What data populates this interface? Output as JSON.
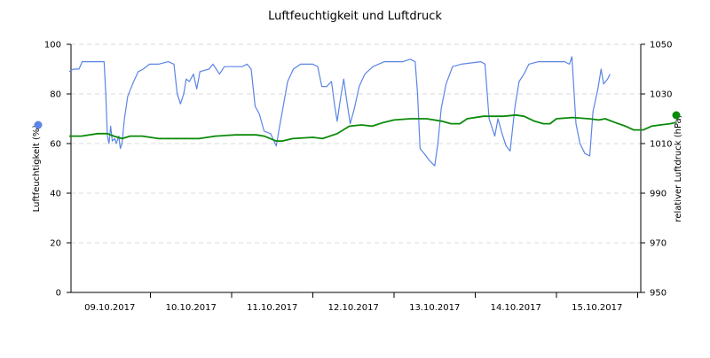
{
  "chart_data": {
    "type": "line",
    "title": "Luftfeuchtigkeit und Luftdruck",
    "y_left": {
      "label": "Luftfeuchtigkeit (%)",
      "min": 0,
      "max": 100,
      "ticks": [
        0,
        20,
        40,
        60,
        80,
        100
      ]
    },
    "y_right": {
      "label": "relativer Luftdruck (hPa)",
      "min": 950,
      "max": 1050,
      "ticks": [
        950,
        970,
        990,
        1010,
        1030,
        1050
      ]
    },
    "x": {
      "min_day": 0,
      "max_day": 7.0,
      "tick_labels": [
        "09.10.2017",
        "10.10.2017",
        "11.10.2017",
        "12.10.2017",
        "13.10.2017",
        "14.10.2017",
        "15.10.2017"
      ]
    },
    "grid": true,
    "legend": "axis-dots",
    "series": [
      {
        "name": "Luftfeuchtigkeit",
        "axis": "left",
        "color": "#5b85e6",
        "points": [
          [
            0.0,
            89
          ],
          [
            0.05,
            90
          ],
          [
            0.12,
            90
          ],
          [
            0.16,
            93
          ],
          [
            0.3,
            93
          ],
          [
            0.43,
            93
          ],
          [
            0.45,
            80
          ],
          [
            0.47,
            63
          ],
          [
            0.49,
            60
          ],
          [
            0.51,
            67
          ],
          [
            0.53,
            61
          ],
          [
            0.56,
            62
          ],
          [
            0.58,
            60
          ],
          [
            0.61,
            63
          ],
          [
            0.63,
            58
          ],
          [
            0.65,
            60
          ],
          [
            0.68,
            70
          ],
          [
            0.72,
            79
          ],
          [
            0.78,
            84
          ],
          [
            0.85,
            89
          ],
          [
            0.91,
            90
          ],
          [
            0.99,
            92
          ],
          [
            1.1,
            92
          ],
          [
            1.22,
            93
          ],
          [
            1.29,
            92
          ],
          [
            1.33,
            80
          ],
          [
            1.37,
            76
          ],
          [
            1.41,
            80
          ],
          [
            1.44,
            86
          ],
          [
            1.48,
            85
          ],
          [
            1.53,
            88
          ],
          [
            1.57,
            82
          ],
          [
            1.61,
            89
          ],
          [
            1.72,
            90
          ],
          [
            1.77,
            92
          ],
          [
            1.85,
            88
          ],
          [
            1.91,
            91
          ],
          [
            2.01,
            91
          ],
          [
            2.13,
            91
          ],
          [
            2.19,
            92
          ],
          [
            2.24,
            90
          ],
          [
            2.29,
            75
          ],
          [
            2.34,
            72
          ],
          [
            2.4,
            65
          ],
          [
            2.48,
            64
          ],
          [
            2.55,
            59
          ],
          [
            2.58,
            65
          ],
          [
            2.63,
            74
          ],
          [
            2.69,
            85
          ],
          [
            2.76,
            90
          ],
          [
            2.85,
            92
          ],
          [
            3.0,
            92
          ],
          [
            3.06,
            91
          ],
          [
            3.11,
            83
          ],
          [
            3.17,
            83
          ],
          [
            3.23,
            85
          ],
          [
            3.27,
            75
          ],
          [
            3.3,
            69
          ],
          [
            3.34,
            78
          ],
          [
            3.38,
            86
          ],
          [
            3.41,
            79
          ],
          [
            3.46,
            68
          ],
          [
            3.51,
            74
          ],
          [
            3.57,
            83
          ],
          [
            3.64,
            88
          ],
          [
            3.74,
            91
          ],
          [
            3.88,
            93
          ],
          [
            4.11,
            93
          ],
          [
            4.2,
            94
          ],
          [
            4.26,
            93
          ],
          [
            4.29,
            80
          ],
          [
            4.32,
            58
          ],
          [
            4.37,
            56
          ],
          [
            4.44,
            53
          ],
          [
            4.5,
            51
          ],
          [
            4.54,
            60
          ],
          [
            4.58,
            74
          ],
          [
            4.64,
            84
          ],
          [
            4.72,
            91
          ],
          [
            4.83,
            92
          ],
          [
            5.07,
            93
          ],
          [
            5.12,
            92
          ],
          [
            5.17,
            70
          ],
          [
            5.24,
            63
          ],
          [
            5.28,
            70
          ],
          [
            5.33,
            64
          ],
          [
            5.38,
            59
          ],
          [
            5.43,
            57
          ],
          [
            5.49,
            75
          ],
          [
            5.54,
            85
          ],
          [
            5.6,
            88
          ],
          [
            5.66,
            92
          ],
          [
            5.78,
            93
          ],
          [
            6.1,
            93
          ],
          [
            6.16,
            92
          ],
          [
            6.19,
            95
          ],
          [
            6.24,
            68
          ],
          [
            6.29,
            60
          ],
          [
            6.35,
            56
          ],
          [
            6.41,
            55
          ],
          [
            6.45,
            73
          ],
          [
            6.51,
            82
          ],
          [
            6.55,
            90
          ],
          [
            6.58,
            84
          ],
          [
            6.63,
            86
          ],
          [
            6.66,
            88
          ]
        ]
      },
      {
        "name": "relativer Luftdruck",
        "axis": "right",
        "color": "#0a8a0a",
        "points": [
          [
            0.0,
            1013
          ],
          [
            0.15,
            1013
          ],
          [
            0.35,
            1014
          ],
          [
            0.47,
            1014
          ],
          [
            0.55,
            1013
          ],
          [
            0.65,
            1012
          ],
          [
            0.75,
            1013
          ],
          [
            0.9,
            1013
          ],
          [
            1.1,
            1012
          ],
          [
            1.35,
            1012
          ],
          [
            1.6,
            1012
          ],
          [
            1.8,
            1013
          ],
          [
            2.05,
            1013.5
          ],
          [
            2.3,
            1013.5
          ],
          [
            2.4,
            1013
          ],
          [
            2.55,
            1011
          ],
          [
            2.62,
            1011
          ],
          [
            2.75,
            1012
          ],
          [
            3.0,
            1012.5
          ],
          [
            3.12,
            1012
          ],
          [
            3.3,
            1014
          ],
          [
            3.45,
            1017
          ],
          [
            3.6,
            1017.5
          ],
          [
            3.73,
            1017
          ],
          [
            3.87,
            1018.5
          ],
          [
            4.0,
            1019.5
          ],
          [
            4.2,
            1020
          ],
          [
            4.4,
            1020
          ],
          [
            4.59,
            1019
          ],
          [
            4.7,
            1018
          ],
          [
            4.81,
            1018
          ],
          [
            4.9,
            1020
          ],
          [
            5.1,
            1021
          ],
          [
            5.35,
            1021
          ],
          [
            5.5,
            1021.5
          ],
          [
            5.6,
            1021
          ],
          [
            5.73,
            1019
          ],
          [
            5.84,
            1018
          ],
          [
            5.92,
            1018
          ],
          [
            6.0,
            1020
          ],
          [
            6.2,
            1020.5
          ],
          [
            6.4,
            1020
          ],
          [
            6.52,
            1019.5
          ],
          [
            6.6,
            1020
          ],
          [
            6.72,
            1018.5
          ],
          [
            6.85,
            1017
          ],
          [
            6.95,
            1015.5
          ],
          [
            7.07,
            1015.5
          ],
          [
            7.17,
            1017
          ],
          [
            7.28,
            1017.5
          ],
          [
            7.4,
            1018
          ],
          [
            7.47,
            1018.5
          ]
        ]
      }
    ]
  }
}
